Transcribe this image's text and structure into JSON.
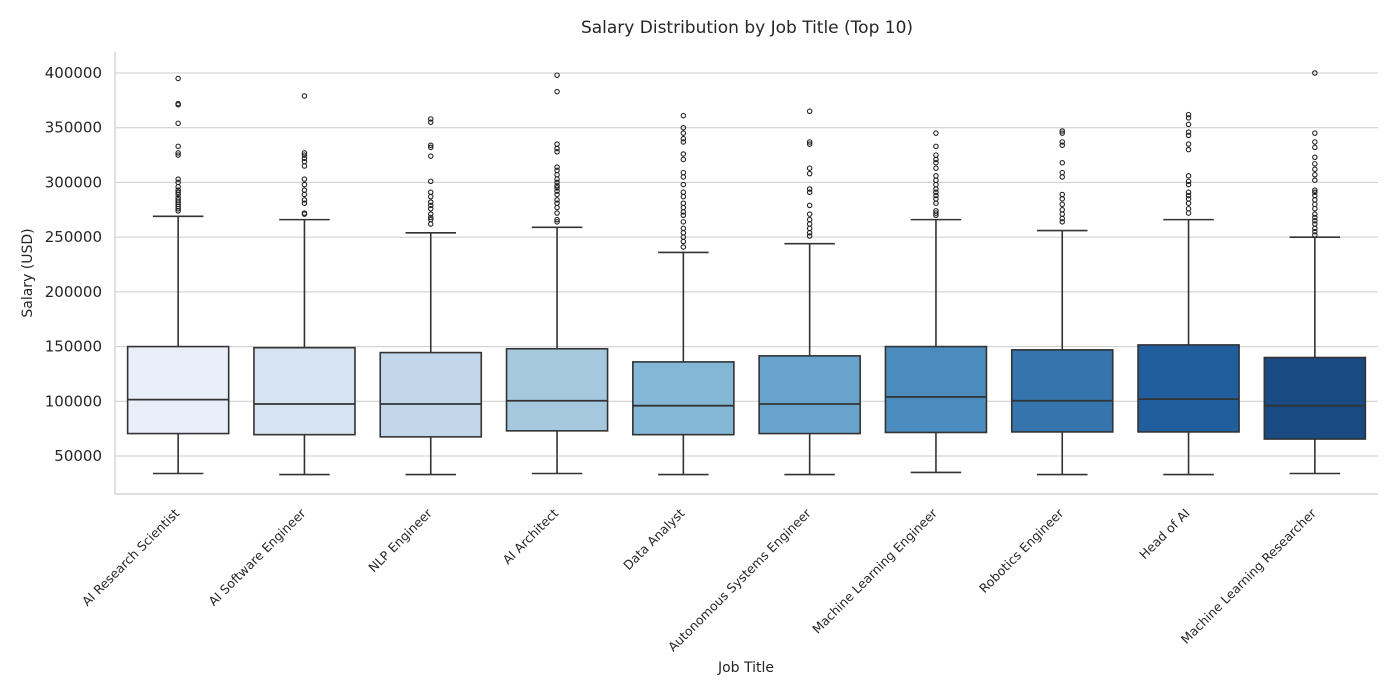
{
  "chart_data": {
    "type": "box",
    "title": "Salary Distribution by Job Title (Top 10)",
    "xlabel": "Job Title",
    "ylabel": "Salary (USD)",
    "ylim": [
      15000,
      420000
    ],
    "yticks": [
      50000,
      100000,
      150000,
      200000,
      250000,
      300000,
      350000,
      400000
    ],
    "grid": "horizontal",
    "palette": [
      "#e8eff8",
      "#d6e3f1",
      "#c2d7ea",
      "#a6c8de",
      "#84b7d6",
      "#68a3cd",
      "#4c8bbd",
      "#3574ad",
      "#215e9d",
      "#1a4a82"
    ],
    "categories": [
      "AI Research Scientist",
      "AI Software Engineer",
      "NLP Engineer",
      "AI Architect",
      "Data Analyst",
      "Autonomous Systems Engineer",
      "Machine Learning Engineer",
      "Robotics Engineer",
      "Head of AI",
      "Machine Learning Researcher"
    ],
    "boxes": [
      {
        "whisker_low": 34000,
        "q1": 70500,
        "median": 101500,
        "q3": 150000,
        "whisker_high": 269000,
        "outliers": [
          395000,
          372000,
          371000,
          354000,
          333000,
          327000,
          325000,
          303000,
          300000,
          296000,
          293000,
          291000,
          289000,
          286000,
          284000,
          282000,
          280000,
          278000,
          276000,
          274000
        ]
      },
      {
        "whisker_low": 33000,
        "q1": 69500,
        "median": 97500,
        "q3": 149000,
        "whisker_high": 266000,
        "outliers": [
          379000,
          327000,
          325000,
          322000,
          319000,
          315000,
          303000,
          298000,
          293000,
          289000,
          284000,
          281000,
          272000,
          271000
        ]
      },
      {
        "whisker_low": 33000,
        "q1": 67500,
        "median": 97500,
        "q3": 144500,
        "whisker_high": 254000,
        "outliers": [
          358000,
          355000,
          334000,
          332000,
          324000,
          301000,
          291000,
          287000,
          282000,
          279000,
          276000,
          271000,
          268000,
          266000,
          262000
        ]
      },
      {
        "whisker_low": 34000,
        "q1": 73000,
        "median": 100500,
        "q3": 148000,
        "whisker_high": 259000,
        "outliers": [
          398000,
          383000,
          335000,
          331000,
          328000,
          314000,
          311000,
          307000,
          303000,
          300000,
          297000,
          295000,
          292000,
          289000,
          284000,
          281000,
          277000,
          272000,
          266000,
          264000
        ]
      },
      {
        "whisker_low": 33000,
        "q1": 69500,
        "median": 96000,
        "q3": 136000,
        "whisker_high": 236000,
        "outliers": [
          361000,
          350000,
          345000,
          340000,
          337000,
          326000,
          321000,
          309000,
          305000,
          298000,
          291000,
          287000,
          281000,
          277000,
          273000,
          270000,
          264000,
          258000,
          254000,
          250000,
          246000,
          241000
        ]
      },
      {
        "whisker_low": 33000,
        "q1": 70500,
        "median": 97500,
        "q3": 141500,
        "whisker_high": 244000,
        "outliers": [
          365000,
          337000,
          335000,
          313000,
          308000,
          294000,
          291000,
          279000,
          271000,
          266000,
          262000,
          258000,
          254000,
          251000
        ]
      },
      {
        "whisker_low": 35000,
        "q1": 71500,
        "median": 104000,
        "q3": 150000,
        "whisker_high": 266000,
        "outliers": [
          345000,
          333000,
          325000,
          321000,
          318000,
          313000,
          306000,
          302000,
          298000,
          294000,
          291000,
          288000,
          285000,
          281000,
          274000,
          272000,
          270000
        ]
      },
      {
        "whisker_low": 33000,
        "q1": 72000,
        "median": 100500,
        "q3": 147000,
        "whisker_high": 256000,
        "outliers": [
          347000,
          345000,
          337000,
          334000,
          318000,
          309000,
          305000,
          289000,
          285000,
          280000,
          275000,
          271000,
          267000,
          264000
        ]
      },
      {
        "whisker_low": 33000,
        "q1": 72000,
        "median": 102000,
        "q3": 151500,
        "whisker_high": 266000,
        "outliers": [
          362000,
          359000,
          353000,
          346000,
          343000,
          335000,
          330000,
          306000,
          301000,
          298000,
          291000,
          288000,
          285000,
          281000,
          276000,
          272000
        ]
      },
      {
        "whisker_low": 34000,
        "q1": 65500,
        "median": 96000,
        "q3": 140000,
        "whisker_high": 250000,
        "outliers": [
          400000,
          345000,
          337000,
          332000,
          323000,
          317000,
          312000,
          307000,
          302000,
          293000,
          291000,
          288000,
          284000,
          280000,
          276000,
          271000,
          268000,
          265000,
          262000,
          258000,
          255000,
          252000
        ]
      }
    ]
  }
}
